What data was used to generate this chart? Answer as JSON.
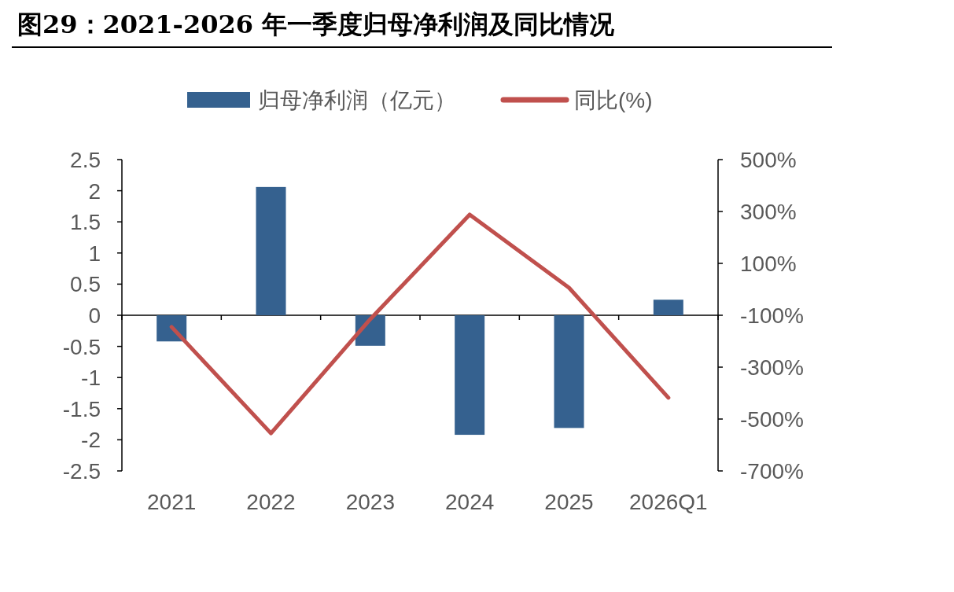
{
  "chart_data": {
    "type": "bar",
    "title": "图29：2021-2026 年一季度归母净利润及同比情况",
    "categories": [
      "2021",
      "2022",
      "2023",
      "2024",
      "2025",
      "2026Q1"
    ],
    "series": [
      {
        "name": "归母净利润（亿元）",
        "color": "#35618f",
        "values": [
          -0.42,
          2.06,
          -0.49,
          -1.92,
          -1.81,
          0.25
        ]
      },
      {
        "name": "同比(%)",
        "type": "line",
        "axis": "y2",
        "color": "#c0504d",
        "values": [
          -145,
          -555,
          -115,
          288,
          6,
          -418
        ]
      }
    ],
    "ylim": [
      -2.5,
      2.5
    ],
    "yticks": [
      -2.5,
      -2,
      -1.5,
      -1,
      -0.5,
      0,
      0.5,
      1,
      1.5,
      2,
      2.5
    ],
    "y2lim": [
      -700,
      500
    ],
    "y2ticks": [
      {
        "value": -700,
        "label": "-700%"
      },
      {
        "value": -500,
        "label": "-500%"
      },
      {
        "value": -300,
        "label": "-300%"
      },
      {
        "value": -100,
        "label": "-100%"
      },
      {
        "value": 100,
        "label": "100%"
      },
      {
        "value": 300,
        "label": "300%"
      },
      {
        "value": 500,
        "label": "500%"
      }
    ],
    "legend": "top"
  }
}
